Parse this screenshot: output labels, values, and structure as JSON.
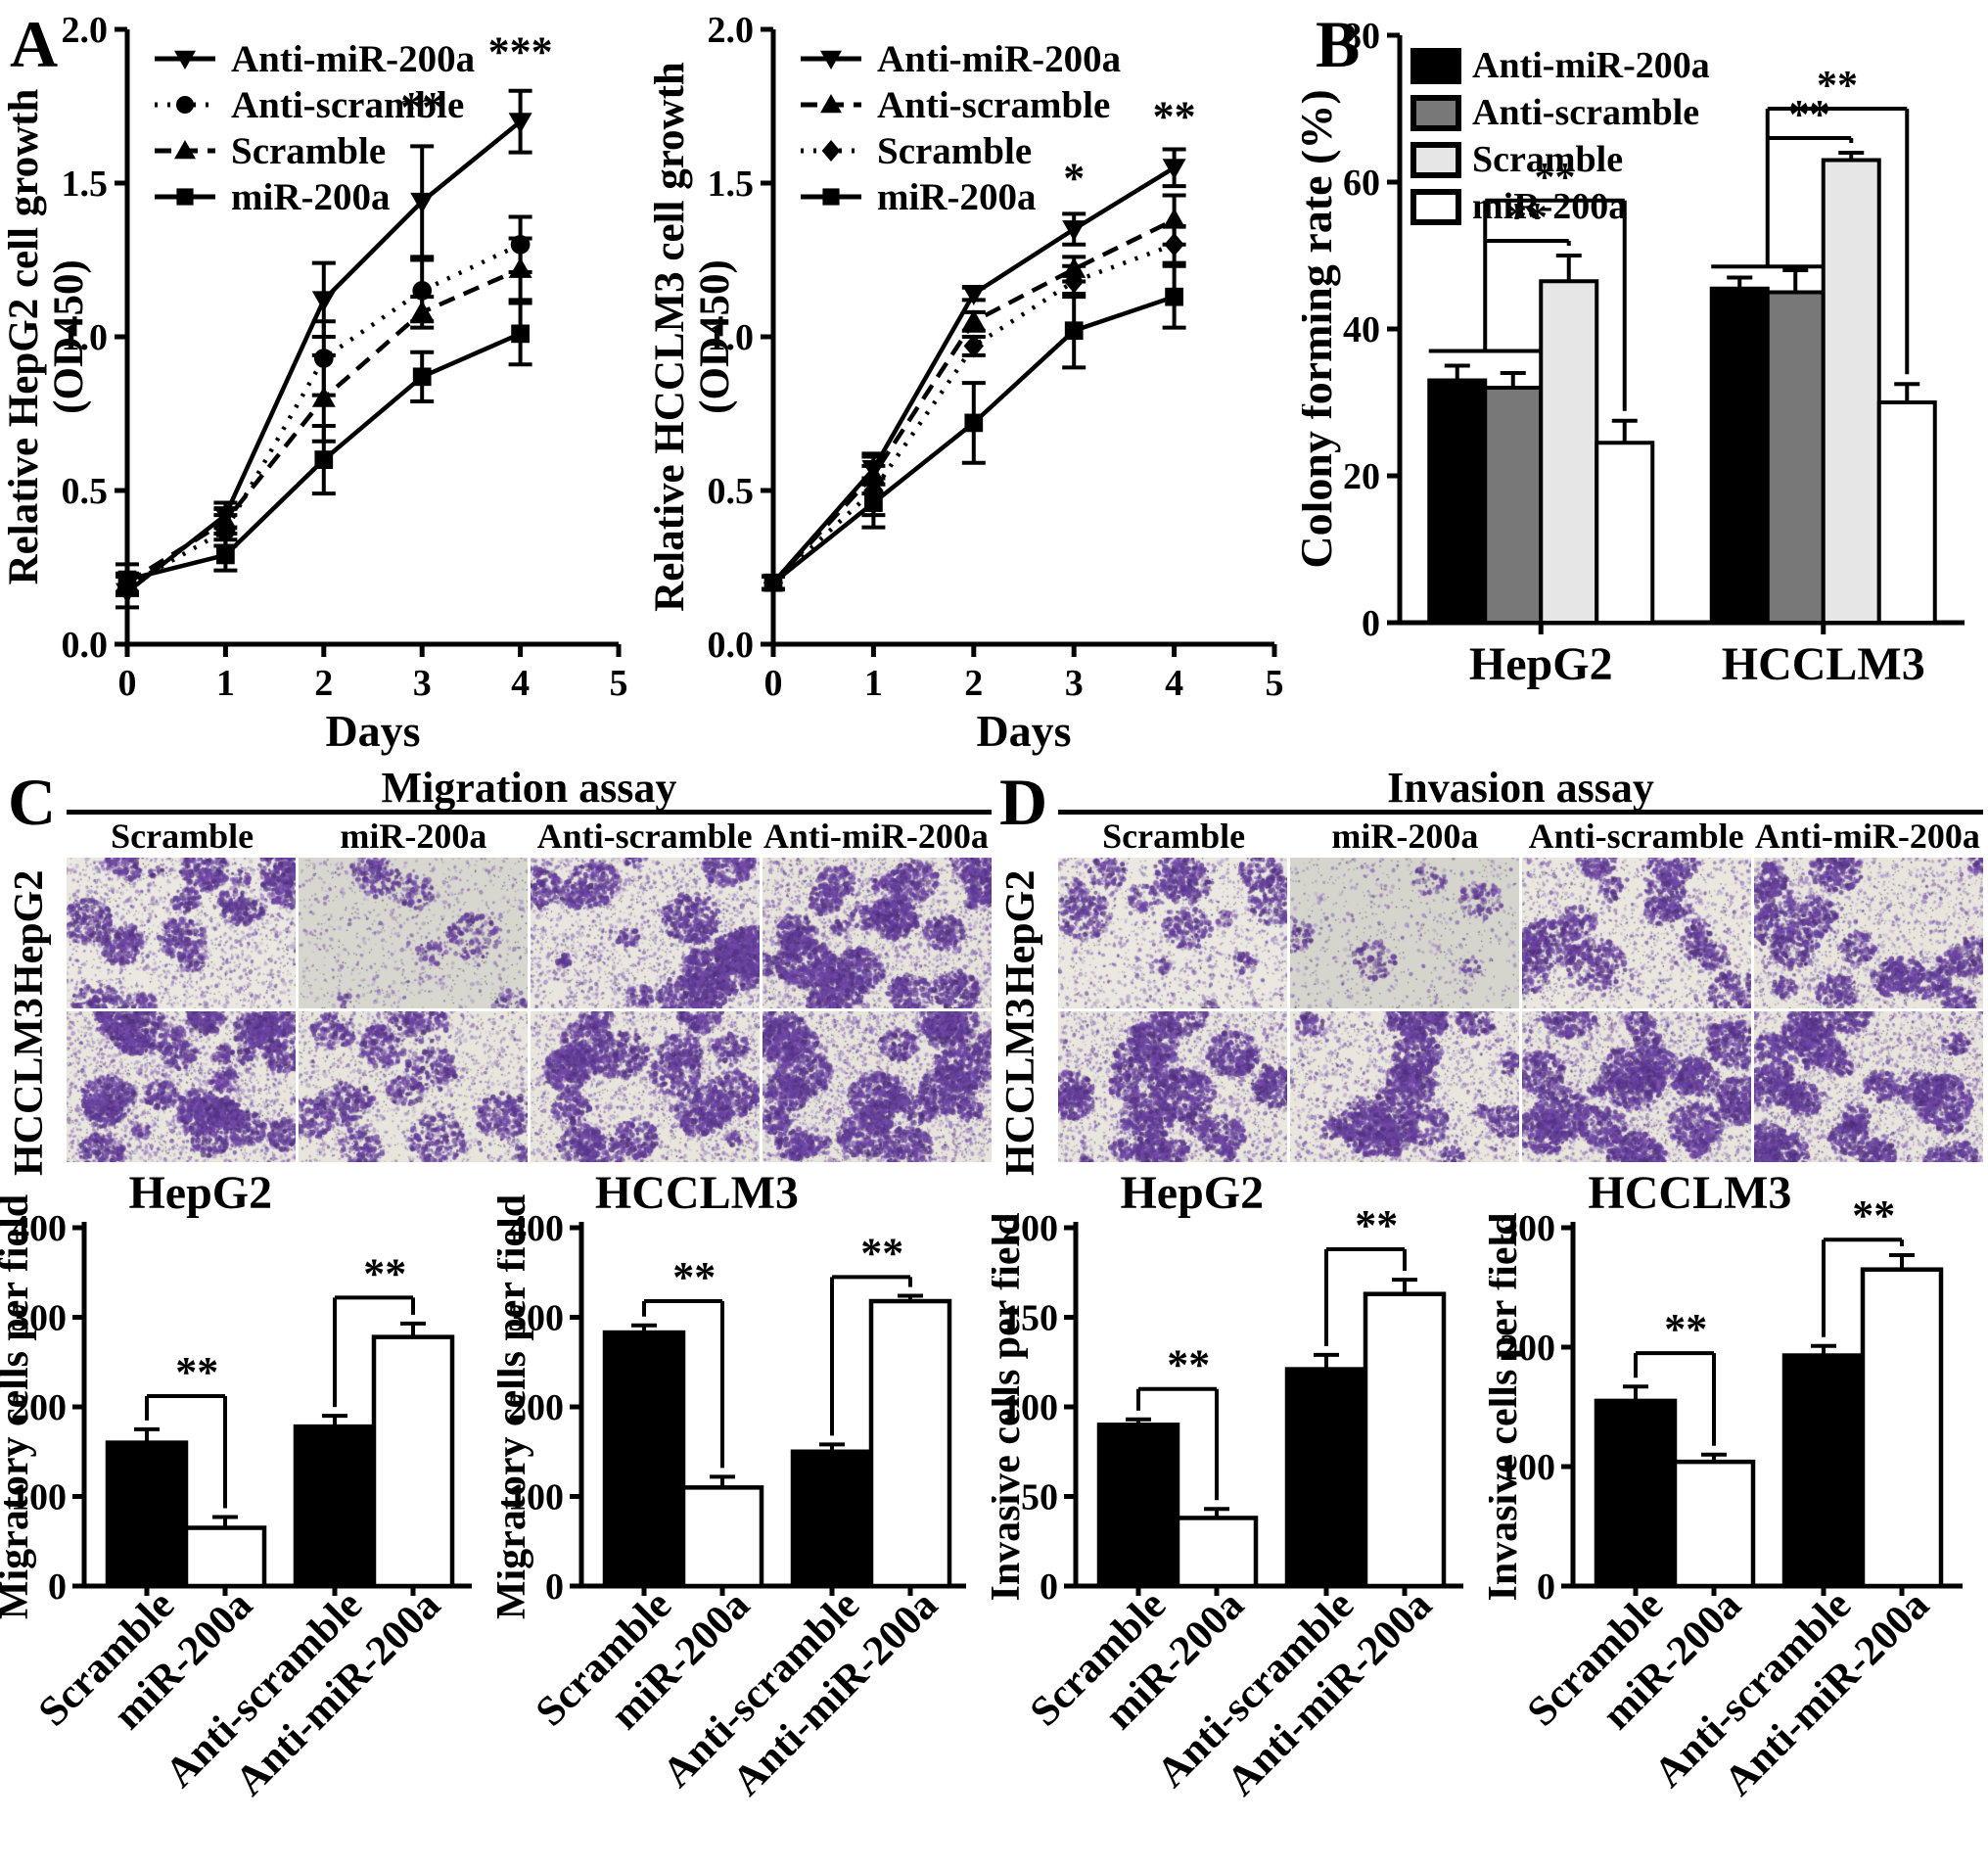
{
  "panels": {
    "A": {
      "label": "A"
    },
    "B": {
      "label": "B"
    },
    "C": {
      "label": "C"
    },
    "D": {
      "label": "D"
    }
  },
  "chart_data": [
    {
      "id": "A1",
      "type": "line",
      "panel": "A",
      "ylabel": [
        "Relative HepG2 cell growth",
        "(OD450)"
      ],
      "xlabel": "Days",
      "xlim": [
        0,
        5
      ],
      "ylim": [
        0,
        2.0
      ],
      "xticks": [
        "0",
        "1",
        "2",
        "3",
        "4",
        "5"
      ],
      "yticks": [
        "0.0",
        "0.5",
        "1.0",
        "1.5",
        "2.0"
      ],
      "x": [
        0,
        1,
        2,
        3,
        4
      ],
      "series": [
        {
          "name": "Anti-miR-200a",
          "marker": "triangle-down",
          "line": "solid",
          "values": [
            0.17,
            0.42,
            1.12,
            1.44,
            1.7
          ],
          "errors": [
            0.05,
            0.04,
            0.12,
            0.18,
            0.1
          ]
        },
        {
          "name": "Anti-scramble",
          "marker": "circle",
          "line": "dotted",
          "values": [
            0.19,
            0.37,
            0.93,
            1.15,
            1.3
          ],
          "errors": [
            0.03,
            0.05,
            0.12,
            0.1,
            0.09
          ]
        },
        {
          "name": "Scramble",
          "marker": "triangle-up",
          "line": "dashed",
          "values": [
            0.2,
            0.4,
            0.8,
            1.08,
            1.22
          ],
          "errors": [
            0.03,
            0.04,
            0.14,
            0.05,
            0.1
          ]
        },
        {
          "name": "miR-200a",
          "marker": "square",
          "line": "solid",
          "values": [
            0.21,
            0.29,
            0.6,
            0.87,
            1.01
          ],
          "errors": [
            0.05,
            0.05,
            0.11,
            0.08,
            0.1
          ]
        }
      ],
      "annotations": [
        {
          "x": 3,
          "y": 1.7,
          "text": "**"
        },
        {
          "x": 4,
          "y": 1.88,
          "text": "***"
        }
      ],
      "legend_position": "top-left"
    },
    {
      "id": "A2",
      "type": "line",
      "panel": "A",
      "ylabel": [
        "Relative HCCLM3 cell growth",
        "(OD450)"
      ],
      "xlabel": "Days",
      "xlim": [
        0,
        5
      ],
      "ylim": [
        0,
        2.0
      ],
      "xticks": [
        "0",
        "1",
        "2",
        "3",
        "4",
        "5"
      ],
      "yticks": [
        "0.0",
        "0.5",
        "1.0",
        "1.5",
        "2.0"
      ],
      "x": [
        0,
        1,
        2,
        3,
        4
      ],
      "series": [
        {
          "name": "Anti-miR-200a",
          "marker": "triangle-down",
          "line": "solid",
          "values": [
            0.2,
            0.57,
            1.14,
            1.35,
            1.55
          ],
          "errors": [
            0.02,
            0.05,
            0.02,
            0.05,
            0.06
          ]
        },
        {
          "name": "Anti-scramble",
          "marker": "triangle-up",
          "line": "dashed",
          "values": [
            0.2,
            0.55,
            1.05,
            1.22,
            1.38
          ],
          "errors": [
            0.02,
            0.06,
            0.03,
            0.04,
            0.08
          ]
        },
        {
          "name": "Scramble",
          "marker": "diamond",
          "line": "dotted",
          "values": [
            0.2,
            0.5,
            0.97,
            1.18,
            1.3
          ],
          "errors": [
            0.02,
            0.08,
            0.03,
            0.05,
            0.06
          ]
        },
        {
          "name": "miR-200a",
          "marker": "square",
          "line": "solid",
          "values": [
            0.2,
            0.46,
            0.72,
            1.02,
            1.13
          ],
          "errors": [
            0.02,
            0.08,
            0.13,
            0.12,
            0.1
          ]
        }
      ],
      "annotations": [
        {
          "x": 3,
          "y": 1.47,
          "text": "*"
        },
        {
          "x": 4,
          "y": 1.67,
          "text": "**"
        }
      ],
      "legend_position": "top-left"
    },
    {
      "id": "B",
      "type": "grouped-bar",
      "panel": "B",
      "ylabel": "Colony forming rate (%)",
      "ylim": [
        0,
        80
      ],
      "yticks": [
        "0",
        "20",
        "40",
        "60",
        "80"
      ],
      "categories": [
        "HepG2",
        "HCCLM3"
      ],
      "series": [
        {
          "name": "Anti-miR-200a",
          "fill": "#000000",
          "values": [
            33,
            45.5
          ],
          "errors": [
            2,
            1.5
          ]
        },
        {
          "name": "Anti-scramble",
          "fill": "#787878",
          "values": [
            32,
            45
          ],
          "errors": [
            2,
            3
          ]
        },
        {
          "name": "Scramble",
          "fill": "#e6e6e6",
          "values": [
            46.5,
            63
          ],
          "errors": [
            3.5,
            1
          ]
        },
        {
          "name": "miR-200a",
          "fill": "#ffffff",
          "values": [
            24.5,
            30
          ],
          "errors": [
            3,
            2.5
          ]
        }
      ],
      "brackets": [
        {
          "group": 0,
          "pair_y": 37,
          "steps": [
            {
              "to": 2,
              "y": 52,
              "label": "**"
            },
            {
              "to": 3,
              "y": 57.5,
              "label": "**"
            }
          ]
        },
        {
          "group": 1,
          "pair_y": 48.5,
          "steps": [
            {
              "to": 2,
              "y": 66,
              "label": "**"
            },
            {
              "to": 3,
              "y": 70,
              "label": "**"
            }
          ]
        }
      ]
    },
    {
      "id": "C1",
      "type": "bar",
      "panel": "C",
      "title": "HepG2",
      "ylabel": "Migratory cells per field",
      "ylim": [
        0,
        400
      ],
      "yticks": [
        "0",
        "100",
        "200",
        "300",
        "400"
      ],
      "categories": [
        "Scramble",
        "miR-200a",
        "Anti-scramble",
        "Anti-miR-200a"
      ],
      "values": [
        160,
        65,
        178,
        278
      ],
      "errors": [
        15,
        12,
        12,
        15
      ],
      "fills": [
        "#000000",
        "#ffffff",
        "#000000",
        "#ffffff"
      ],
      "brackets": [
        {
          "from": 0,
          "to": 1,
          "y": 212,
          "label": "**"
        },
        {
          "from": 2,
          "to": 3,
          "y": 322,
          "label": "**"
        }
      ]
    },
    {
      "id": "C2",
      "type": "bar",
      "panel": "C",
      "title": "HCCLM3",
      "ylabel": "Migratory cells per field",
      "ylim": [
        0,
        400
      ],
      "yticks": [
        "0",
        "100",
        "200",
        "300",
        "400"
      ],
      "categories": [
        "Scramble",
        "miR-200a",
        "Anti-scramble",
        "Anti-miR-200a"
      ],
      "values": [
        283,
        110,
        150,
        318
      ],
      "errors": [
        8,
        12,
        8,
        6
      ],
      "fills": [
        "#000000",
        "#ffffff",
        "#000000",
        "#ffffff"
      ],
      "brackets": [
        {
          "from": 0,
          "to": 1,
          "y": 318,
          "label": "**"
        },
        {
          "from": 2,
          "to": 3,
          "y": 345,
          "label": "**"
        }
      ]
    },
    {
      "id": "D1",
      "type": "bar",
      "panel": "D",
      "title": "HepG2",
      "ylabel": "Invasive cells per field",
      "ylim": [
        0,
        200
      ],
      "yticks": [
        "0",
        "50",
        "100",
        "150",
        "200"
      ],
      "categories": [
        "Scramble",
        "miR-200a",
        "Anti-scramble",
        "Anti-miR-200a"
      ],
      "values": [
        90,
        38,
        121,
        163
      ],
      "errors": [
        3,
        5,
        8,
        8
      ],
      "fills": [
        "#000000",
        "#ffffff",
        "#000000",
        "#ffffff"
      ],
      "brackets": [
        {
          "from": 0,
          "to": 1,
          "y": 110,
          "label": "**"
        },
        {
          "from": 2,
          "to": 3,
          "y": 188,
          "label": "**"
        }
      ]
    },
    {
      "id": "D2",
      "type": "bar",
      "panel": "D",
      "title": "HCCLM3",
      "ylabel": "Invasive cells per field",
      "ylim": [
        0,
        300
      ],
      "yticks": [
        "0",
        "100",
        "200",
        "300"
      ],
      "categories": [
        "Scramble",
        "miR-200a",
        "Anti-scramble",
        "Anti-miR-200a"
      ],
      "values": [
        155,
        104,
        193,
        265
      ],
      "errors": [
        12,
        6,
        8,
        12
      ],
      "fills": [
        "#000000",
        "#ffffff",
        "#000000",
        "#ffffff"
      ],
      "brackets": [
        {
          "from": 0,
          "to": 1,
          "y": 195,
          "label": "**"
        },
        {
          "from": 2,
          "to": 3,
          "y": 290,
          "label": "**"
        }
      ]
    }
  ],
  "micro_assays": {
    "C": {
      "title": "Migration assay",
      "col_headers": [
        "Scramble",
        "miR-200a",
        "Anti-scramble",
        "Anti-miR-200a"
      ],
      "row_labels": [
        "HepG2",
        "HCCLM3"
      ],
      "cells": [
        [
          {
            "d": 0.55,
            "bg": "#eae8e0"
          },
          {
            "d": 0.17,
            "bg": "#d8d7cf"
          },
          {
            "d": 0.62,
            "bg": "#e8e6de"
          },
          {
            "d": 0.8,
            "bg": "#e7e4dc"
          }
        ],
        [
          {
            "d": 0.85,
            "bg": "#e9e6de"
          },
          {
            "d": 0.42,
            "bg": "#e7e5dc"
          },
          {
            "d": 0.65,
            "bg": "#e8e5dd"
          },
          {
            "d": 0.88,
            "bg": "#e7e4dc"
          }
        ]
      ]
    },
    "D": {
      "title": "Invasion assay",
      "col_headers": [
        "Scramble",
        "miR-200a",
        "Anti-scramble",
        "Anti-miR-200a"
      ],
      "row_labels": [
        "HepG2",
        "HCCLM3"
      ],
      "cells": [
        [
          {
            "d": 0.35,
            "bg": "#eae8e0"
          },
          {
            "d": 0.1,
            "bg": "#d6d5cd"
          },
          {
            "d": 0.48,
            "bg": "#eae7df"
          },
          {
            "d": 0.58,
            "bg": "#e8e5dd"
          }
        ],
        [
          {
            "d": 0.78,
            "bg": "#e9e6de"
          },
          {
            "d": 0.6,
            "bg": "#e9e6de"
          },
          {
            "d": 0.82,
            "bg": "#e8e5dd"
          },
          {
            "d": 0.85,
            "bg": "#e8e5dd"
          }
        ]
      ]
    }
  },
  "colors": {
    "ink": "#000000",
    "stain_purple": "#6b46a0",
    "micro_bg": "#eae8e0"
  }
}
